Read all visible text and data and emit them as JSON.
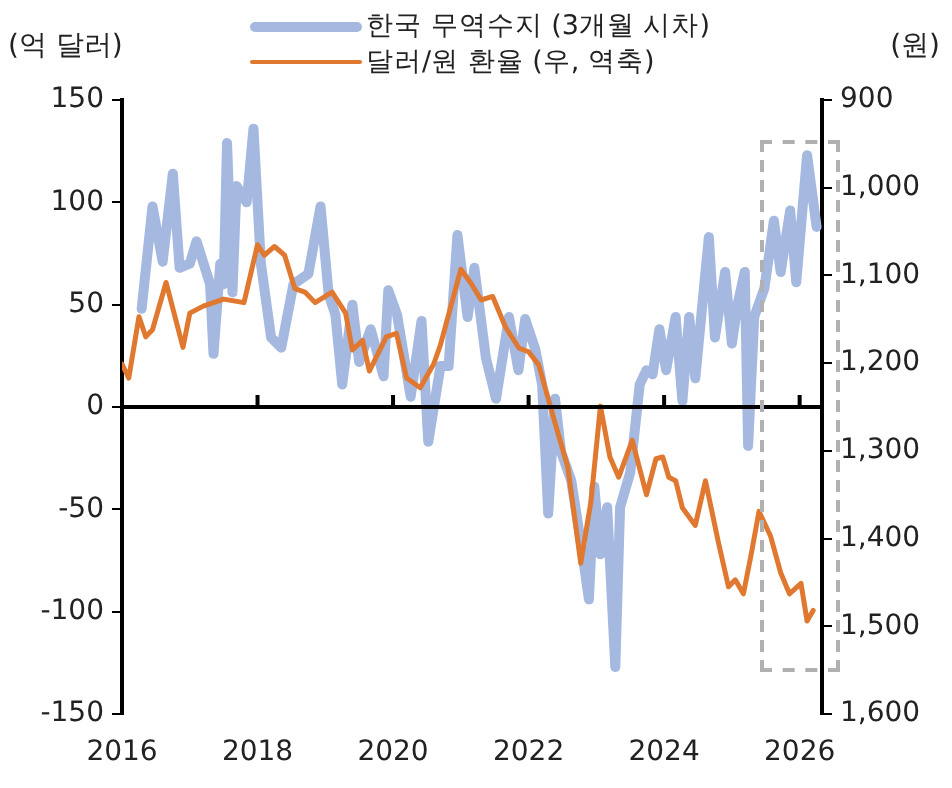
{
  "chart_data": {
    "type": "line",
    "ylabel": "(억 달러)",
    "y2label": "(원)",
    "legend": "top",
    "xlim": [
      2016,
      2026.33
    ],
    "xticks": [
      2016,
      2018,
      2020,
      2022,
      2024,
      2026
    ],
    "ylim": [
      -150,
      150
    ],
    "yticks": [
      -150,
      -100,
      -50,
      0,
      50,
      100,
      150
    ],
    "y2lim": [
      1600,
      900
    ],
    "y2ticks": [
      {
        "value": 900,
        "label": "900"
      },
      {
        "value": 1000,
        "label": "1,000"
      },
      {
        "value": 1100,
        "label": "1,100"
      },
      {
        "value": 1200,
        "label": "1,200"
      },
      {
        "value": 1300,
        "label": "1,300"
      },
      {
        "value": 1400,
        "label": "1,400"
      },
      {
        "value": 1500,
        "label": "1,500"
      },
      {
        "value": 1600,
        "label": "1,600"
      }
    ],
    "series": [
      {
        "name": "한국 무역수지 (3개월 시차)",
        "color": "#a4b8e0",
        "x": [
          2016.29,
          2016.45,
          2016.6,
          2016.75,
          2016.85,
          2017.0,
          2017.1,
          2017.3,
          2017.35,
          2017.45,
          2017.5,
          2017.55,
          2017.63,
          2017.69,
          2017.84,
          2017.94,
          2018.05,
          2018.2,
          2018.35,
          2018.53,
          2018.75,
          2018.93,
          2019.05,
          2019.15,
          2019.25,
          2019.4,
          2019.5,
          2019.67,
          2019.86,
          2019.93,
          2020.06,
          2020.26,
          2020.42,
          2020.52,
          2020.7,
          2020.82,
          2020.95,
          2021.1,
          2021.2,
          2021.37,
          2021.52,
          2021.71,
          2021.85,
          2021.95,
          2022.1,
          2022.2,
          2022.29,
          2022.39,
          2022.48,
          2022.63,
          2022.77,
          2022.89,
          2022.97,
          2023.06,
          2023.16,
          2023.28,
          2023.35,
          2023.5,
          2023.64,
          2023.74,
          2023.83,
          2023.93,
          2024.03,
          2024.17,
          2024.27,
          2024.37,
          2024.46,
          2024.66,
          2024.75,
          2024.9,
          2025.0,
          2025.09,
          2025.19,
          2025.24,
          2025.33,
          2025.48,
          2025.62,
          2025.72,
          2025.86,
          2025.95,
          2026.11,
          2026.25
        ],
        "values": [
          48,
          98,
          71,
          114,
          68,
          70,
          81,
          60,
          26,
          70,
          60,
          129,
          56,
          108,
          100,
          136,
          70,
          34,
          29,
          60,
          65,
          98,
          55,
          45,
          11,
          50,
          22,
          38,
          15,
          57,
          45,
          5,
          42,
          -17,
          20,
          20,
          84,
          44,
          68,
          24,
          4,
          44,
          18,
          43,
          28,
          11,
          -52,
          4,
          -22,
          -36,
          -66,
          -94,
          -39,
          -72,
          -49,
          -127,
          -49,
          -32,
          11,
          18,
          16,
          38,
          18,
          44,
          3,
          44,
          14,
          83,
          34,
          66,
          31,
          51,
          66,
          -19,
          44,
          58,
          91,
          66,
          96,
          61,
          123,
          88
        ]
      },
      {
        "name": "달러/원 환율 (우, 역축)",
        "color": "#e0782f",
        "axis": "y2",
        "x": [
          2016.0,
          2016.1,
          2016.25,
          2016.35,
          2016.45,
          2016.65,
          2016.9,
          2017.0,
          2017.2,
          2017.5,
          2017.8,
          2018.0,
          2018.1,
          2018.25,
          2018.4,
          2018.55,
          2018.7,
          2018.85,
          2019.1,
          2019.3,
          2019.4,
          2019.55,
          2019.65,
          2019.9,
          2020.05,
          2020.2,
          2020.4,
          2020.6,
          2020.7,
          2021.0,
          2021.15,
          2021.3,
          2021.47,
          2021.66,
          2021.86,
          2022.0,
          2022.15,
          2022.39,
          2022.58,
          2022.77,
          2022.92,
          2023.06,
          2023.2,
          2023.33,
          2023.53,
          2023.74,
          2023.88,
          2023.98,
          2024.07,
          2024.17,
          2024.27,
          2024.46,
          2024.61,
          2024.8,
          2024.95,
          2025.05,
          2025.17,
          2025.28,
          2025.4,
          2025.57,
          2025.72,
          2025.85,
          2026.02,
          2026.11,
          2026.2
        ],
        "values": [
          1201,
          1217,
          1147,
          1170,
          1162,
          1108,
          1182,
          1143,
          1135,
          1127,
          1131,
          1065,
          1077,
          1067,
          1077,
          1115,
          1119,
          1131,
          1119,
          1143,
          1185,
          1174,
          1209,
          1170,
          1166,
          1217,
          1228,
          1201,
          1179,
          1093,
          1109,
          1128,
          1124,
          1159,
          1183,
          1187,
          1202,
          1268,
          1319,
          1428,
          1358,
          1249,
          1307,
          1330,
          1288,
          1350,
          1309,
          1307,
          1330,
          1334,
          1365,
          1385,
          1334,
          1404,
          1455,
          1447,
          1463,
          1420,
          1369,
          1397,
          1439,
          1463,
          1451,
          1494,
          1482
        ]
      }
    ]
  }
}
